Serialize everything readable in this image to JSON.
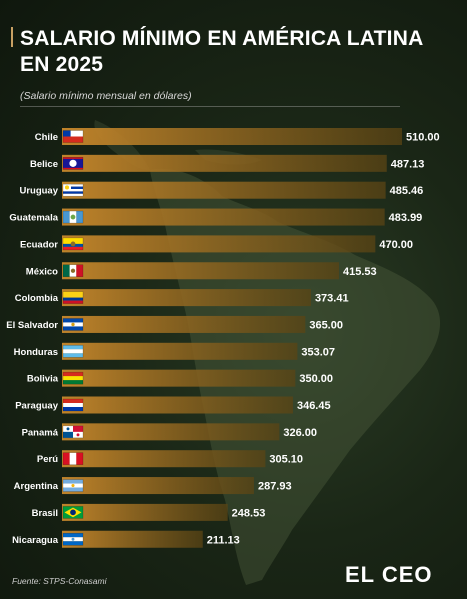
{
  "header": {
    "title": "SALARIO MÍNIMO EN AMÉRICA LATINA EN 2025",
    "subtitle": "(Salario mínimo mensual en dólares)"
  },
  "footer": {
    "source": "Fuente: STPS-Conasami",
    "logo_text": "EL CEO"
  },
  "colors": {
    "bar_start": "#c9892c",
    "bar_end": "#5a4414",
    "accent": "#c8a063"
  },
  "chart_data": {
    "type": "bar",
    "orientation": "horizontal",
    "title": "SALARIO MÍNIMO EN AMÉRICA LATINA EN 2025",
    "subtitle": "(Salario mínimo mensual en dólares)",
    "categories": [
      "Chile",
      "Belice",
      "Uruguay",
      "Guatemala",
      "Ecuador",
      "México",
      "Colombia",
      "El Salvador",
      "Honduras",
      "Bolivia",
      "Paraguay",
      "Panamá",
      "Perú",
      "Argentina",
      "Brasil",
      "Nicaragua"
    ],
    "values": [
      510.0,
      487.13,
      485.46,
      483.99,
      470.0,
      415.53,
      373.41,
      365.0,
      353.07,
      350.0,
      346.45,
      326.0,
      305.1,
      287.93,
      248.53,
      211.13
    ],
    "value_labels": [
      "510.00",
      "487.13",
      "485.46",
      "483.99",
      "470.00",
      "415.53",
      "373.41",
      "365.00",
      "353.07",
      "350.00",
      "346.45",
      "326.00",
      "305.10",
      "287.93",
      "248.53",
      "211.13"
    ],
    "flags": [
      "chile-flag",
      "belize-flag",
      "uruguay-flag",
      "guatemala-flag",
      "ecuador-flag",
      "mexico-flag",
      "colombia-flag",
      "el-salvador-flag",
      "honduras-flag",
      "bolivia-flag",
      "paraguay-flag",
      "panama-flag",
      "peru-flag",
      "argentina-flag",
      "brazil-flag",
      "nicaragua-flag"
    ],
    "xlim": [
      0,
      510
    ],
    "grid": false,
    "legend": "none"
  }
}
